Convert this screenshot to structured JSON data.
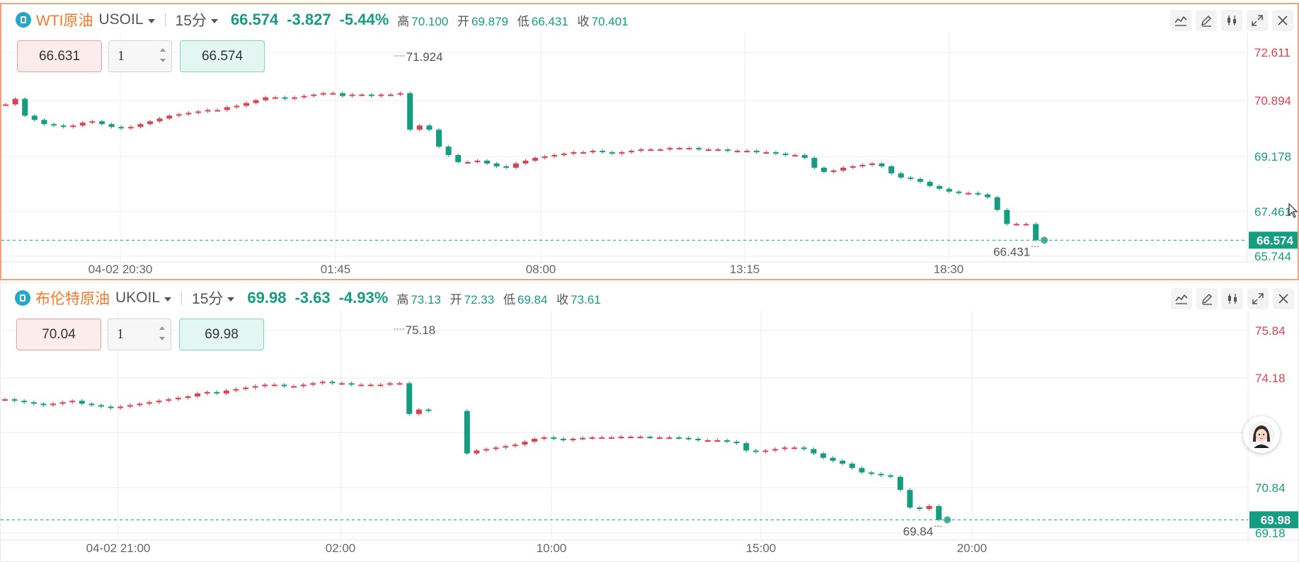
{
  "colors": {
    "up": "#d9434f",
    "down": "#159d82",
    "accent": "#f07a2a",
    "grid": "#ececec"
  },
  "panels": [
    {
      "name": "WTI原油",
      "code": "USOIL",
      "timeframe": "15分",
      "price": "66.574",
      "change": "-3.827",
      "change_pct": "-5.44%",
      "ohlc": [
        {
          "label": "高",
          "value": "70.100"
        },
        {
          "label": "开",
          "value": "69.879"
        },
        {
          "label": "低",
          "value": "66.431"
        },
        {
          "label": "收",
          "value": "70.401"
        }
      ],
      "sell_price": "66.631",
      "quantity": "1",
      "buy_price": "66.574",
      "high_label": "71.924",
      "low_label": "66.431",
      "current_label": "66.574"
    },
    {
      "name": "布伦特原油",
      "code": "UKOIL",
      "timeframe": "15分",
      "price": "69.98",
      "change": "-3.63",
      "change_pct": "-4.93%",
      "ohlc": [
        {
          "label": "高",
          "value": "73.13"
        },
        {
          "label": "开",
          "value": "72.33"
        },
        {
          "label": "低",
          "value": "69.84"
        },
        {
          "label": "收",
          "value": "73.61"
        }
      ],
      "sell_price": "70.04",
      "quantity": "1",
      "buy_price": "69.98",
      "high_label": "75.18",
      "low_label": "69.84",
      "current_label": "69.98"
    }
  ],
  "toolbar_icons": [
    "indicator-icon",
    "draw-icon",
    "candle-type-icon",
    "expand-icon",
    "close-icon"
  ],
  "chart_data": [
    {
      "type": "candlestick",
      "title": "WTI原油 USOIL 15分",
      "y_ticks": [
        "72.611",
        "70.894",
        "69.178",
        "67.461",
        "65.744"
      ],
      "x_ticks": [
        "04-02 20:30",
        "01:45",
        "08:00",
        "13:15",
        "18:30"
      ],
      "ylim": [
        65.4,
        73.3
      ],
      "annotations": {
        "high": 71.924,
        "low": 66.431,
        "current": 66.574
      },
      "close_series": [
        71.4,
        71.6,
        71.0,
        70.85,
        70.7,
        70.65,
        70.6,
        70.65,
        70.75,
        70.8,
        70.7,
        70.6,
        70.55,
        70.6,
        70.7,
        70.8,
        70.9,
        71.0,
        71.05,
        71.1,
        71.15,
        71.2,
        71.2,
        71.3,
        71.35,
        71.45,
        71.55,
        71.65,
        71.65,
        71.6,
        71.65,
        71.7,
        71.75,
        71.8,
        71.8,
        71.7,
        71.75,
        71.75,
        71.7,
        71.75,
        71.75,
        71.8,
        70.5,
        70.65,
        70.5,
        69.9,
        69.6,
        69.35,
        69.35,
        69.4,
        69.3,
        69.2,
        69.15,
        69.3,
        69.4,
        69.5,
        69.55,
        69.6,
        69.65,
        69.7,
        69.7,
        69.75,
        69.7,
        69.65,
        69.7,
        69.75,
        69.8,
        69.8,
        69.8,
        69.85,
        69.85,
        69.85,
        69.8,
        69.8,
        69.8,
        69.75,
        69.75,
        69.75,
        69.7,
        69.7,
        69.65,
        69.6,
        69.6,
        69.5,
        69.15,
        69.0,
        69.05,
        69.15,
        69.2,
        69.25,
        69.3,
        69.2,
        68.95,
        68.8,
        68.75,
        68.65,
        68.5,
        68.4,
        68.3,
        68.25,
        68.25,
        68.2,
        68.1,
        67.65,
        67.15,
        67.15,
        67.15,
        66.574
      ]
    },
    {
      "type": "candlestick",
      "title": "布伦特原油 UKOIL 15分",
      "y_ticks": [
        "75.84",
        "74.18",
        "",
        "70.84",
        "69.18"
      ],
      "x_ticks": [
        "04-02 21:00",
        "02:00",
        "10:00",
        "15:00",
        "20:00"
      ],
      "ylim": [
        68.9,
        76.5
      ],
      "annotations": {
        "high": 75.18,
        "low": 69.84,
        "current": 69.98
      },
      "close_series": [
        74.1,
        74.05,
        74.0,
        73.95,
        73.9,
        73.95,
        74.0,
        74.05,
        73.95,
        73.9,
        73.85,
        73.8,
        73.85,
        73.9,
        73.95,
        74.0,
        74.05,
        74.1,
        74.15,
        74.2,
        74.3,
        74.35,
        74.3,
        74.4,
        74.45,
        74.5,
        74.55,
        74.6,
        74.6,
        74.55,
        74.55,
        74.6,
        74.65,
        74.7,
        74.65,
        74.65,
        74.6,
        74.6,
        74.6,
        74.6,
        74.65,
        74.65,
        73.6,
        73.75,
        73.7,
        null,
        null,
        null,
        72.25,
        72.35,
        72.4,
        72.45,
        72.5,
        72.55,
        72.65,
        72.75,
        72.8,
        72.75,
        72.7,
        72.75,
        72.78,
        72.8,
        72.8,
        72.8,
        72.82,
        72.82,
        72.82,
        72.8,
        72.8,
        72.8,
        72.78,
        72.75,
        72.7,
        72.7,
        72.7,
        72.65,
        72.6,
        72.35,
        72.3,
        72.35,
        72.4,
        72.45,
        72.45,
        72.4,
        72.25,
        72.1,
        72.0,
        71.9,
        71.75,
        71.6,
        71.55,
        71.5,
        71.45,
        71.0,
        70.4,
        70.35,
        70.45,
        69.98
      ]
    }
  ]
}
